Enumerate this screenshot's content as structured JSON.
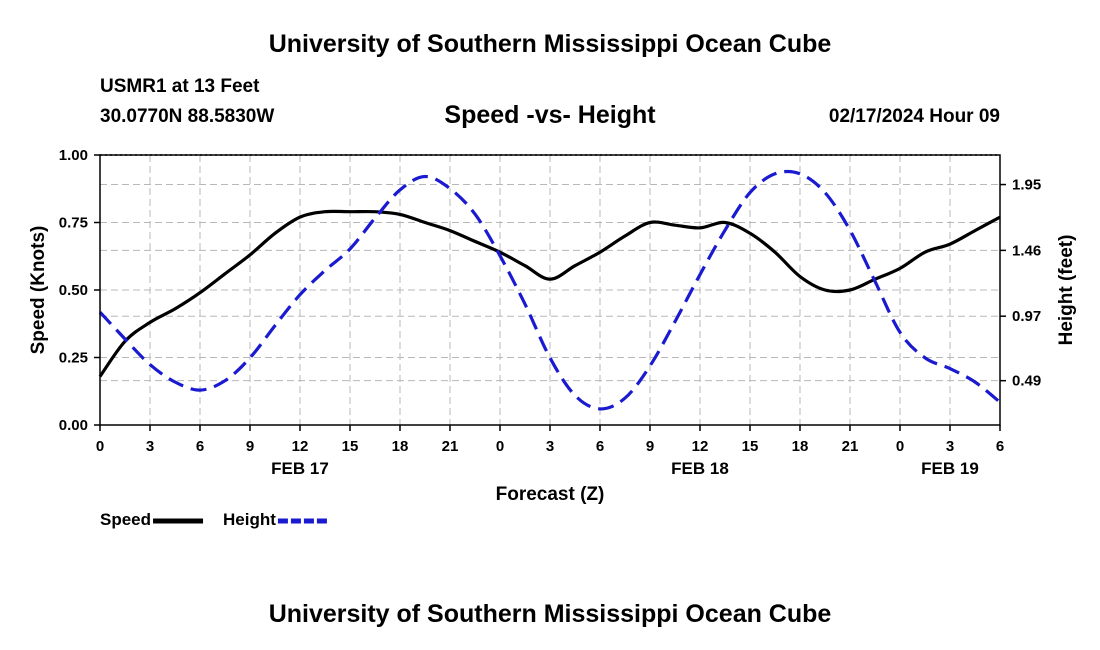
{
  "header": {
    "title": "University of Southern Mississippi Ocean Cube",
    "station": "USMR1 at 13 Feet",
    "coords": "30.0770N  88.5830W",
    "datetime": "02/17/2024 Hour 09",
    "footer_title": "University of Southern Mississippi Ocean Cube"
  },
  "chart_data": {
    "type": "line",
    "title": "Speed -vs- Height",
    "xlabel": "Forecast (Z)",
    "ylabel": "Speed (Knots)",
    "y2label": "Height (feet)",
    "xlim": [
      0,
      54
    ],
    "ylim": [
      0,
      1
    ],
    "y2lim": [
      0.16,
      2.17
    ],
    "x_ticks": [
      0,
      3,
      6,
      9,
      12,
      15,
      18,
      21,
      24,
      27,
      30,
      33,
      36,
      39,
      42,
      45,
      48,
      51,
      54
    ],
    "x_tick_labels": [
      "0",
      "3",
      "6",
      "9",
      "12",
      "15",
      "18",
      "21",
      "0",
      "3",
      "6",
      "9",
      "12",
      "15",
      "18",
      "21",
      "0",
      "3",
      "6"
    ],
    "date_labels": [
      {
        "x": 12,
        "label": "FEB 17"
      },
      {
        "x": 36,
        "label": "FEB 18"
      },
      {
        "x": 51,
        "label": "FEB 19"
      }
    ],
    "y_ticks": [
      0,
      0.25,
      0.5,
      0.75,
      1.0
    ],
    "y_tick_labels": [
      "0.00",
      "0.25",
      "0.50",
      "0.75",
      "1.00"
    ],
    "y2_ticks": [
      0.49,
      0.97,
      1.46,
      1.95
    ],
    "y2_tick_labels": [
      "0.49",
      "0.97",
      "1.46",
      "1.95"
    ],
    "grid": true,
    "legend_position": "bottom-left",
    "series": [
      {
        "name": "Speed",
        "axis": "left",
        "color": "#000000",
        "dash": "solid",
        "x": [
          0,
          1.5,
          3,
          4.5,
          6,
          7.5,
          9,
          10.5,
          12,
          13.5,
          15,
          16.5,
          18,
          19.5,
          21,
          22.5,
          24,
          25.5,
          27,
          28.5,
          30,
          31.5,
          33,
          34.5,
          36,
          37.5,
          39,
          40.5,
          42,
          43.5,
          45,
          46.5,
          48,
          49.5,
          51,
          52.5,
          54
        ],
        "values": [
          0.18,
          0.31,
          0.38,
          0.43,
          0.49,
          0.56,
          0.63,
          0.71,
          0.77,
          0.79,
          0.79,
          0.79,
          0.78,
          0.75,
          0.72,
          0.68,
          0.64,
          0.59,
          0.54,
          0.59,
          0.64,
          0.7,
          0.75,
          0.74,
          0.73,
          0.75,
          0.71,
          0.64,
          0.55,
          0.5,
          0.5,
          0.54,
          0.58,
          0.64,
          0.67,
          0.72,
          0.77
        ]
      },
      {
        "name": "Height",
        "axis": "right",
        "color": "#1a1ad0",
        "dash": "dashed",
        "x": [
          0,
          1.5,
          3,
          4.5,
          6,
          7.5,
          9,
          10.5,
          12,
          13.5,
          15,
          16.5,
          18,
          19.5,
          21,
          22.5,
          24,
          25.5,
          27,
          28.5,
          30,
          31.5,
          33,
          34.5,
          36,
          37.5,
          39,
          40.5,
          42,
          43.5,
          45,
          46.5,
          48,
          49.5,
          51,
          52.5,
          54
        ],
        "values": [
          1.0,
          0.8,
          0.61,
          0.48,
          0.42,
          0.49,
          0.66,
          0.9,
          1.13,
          1.31,
          1.47,
          1.7,
          1.91,
          2.01,
          1.92,
          1.73,
          1.42,
          1.06,
          0.66,
          0.38,
          0.28,
          0.36,
          0.6,
          0.93,
          1.28,
          1.61,
          1.89,
          2.03,
          2.03,
          1.89,
          1.61,
          1.23,
          0.85,
          0.66,
          0.58,
          0.48,
          0.33
        ]
      }
    ]
  }
}
